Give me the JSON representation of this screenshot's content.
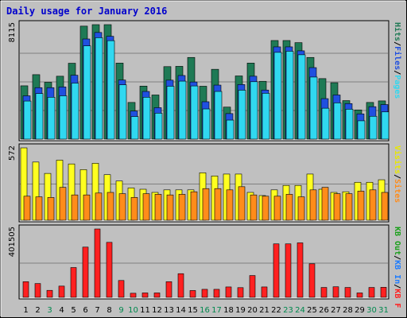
{
  "chart_data": {
    "type": "bar",
    "title": "Daily usage for January 2016",
    "categories": [
      "1",
      "2",
      "3",
      "4",
      "5",
      "6",
      "7",
      "8",
      "9",
      "10",
      "11",
      "12",
      "13",
      "14",
      "15",
      "16",
      "17",
      "18",
      "19",
      "20",
      "21",
      "22",
      "23",
      "24",
      "25",
      "26",
      "27",
      "28",
      "29",
      "30",
      "31"
    ],
    "weekend_days": [
      3,
      9,
      10,
      16,
      17,
      23,
      24,
      30,
      31
    ],
    "colors": {
      "title": "#0000cc",
      "weekday_label": "#000000",
      "weekend_label": "#00884e",
      "hits": "#1f7a55",
      "files": "#2050e0",
      "pages": "#30d8f0",
      "visits": "#ffff20",
      "sites": "#ff8c1a",
      "kbin": "#1a7aff",
      "kbout": "#1a9f1a",
      "kbf": "#ff2020"
    },
    "panels": [
      {
        "name": "hits-files-pages",
        "max_label": "8115",
        "ylim": [
          0,
          8115
        ],
        "series": [
          {
            "name": "Hits",
            "values": [
              3780,
              4570,
              4030,
              4460,
              5380,
              8010,
              8115,
              8115,
              5390,
              2600,
              3760,
              3130,
              5140,
              5160,
              5790,
              3750,
              4950,
              2270,
              4480,
              5390,
              4100,
              6990,
              6990,
              6840,
              5790,
              4290,
              4000,
              2730,
              2070,
              2600,
              2710
            ]
          },
          {
            "name": "Files",
            "values": [
              3070,
              3650,
              3650,
              3700,
              4530,
              7100,
              7560,
              7290,
              4190,
              1990,
              3380,
              2230,
              4180,
              4510,
              4050,
              2650,
              3830,
              1810,
              3870,
              4460,
              3480,
              6540,
              6540,
              6260,
              5070,
              2870,
              3130,
              2520,
              1790,
              2300,
              2450
            ]
          },
          {
            "name": "Pages",
            "values": [
              2700,
              3230,
              2970,
              3070,
              3970,
              6610,
              7190,
              6980,
              3850,
              1600,
              2970,
              1840,
              3750,
              4110,
              3770,
              2140,
              3380,
              1350,
              3470,
              4070,
              3250,
              6150,
              6230,
              5980,
              4400,
              2190,
              2570,
              2120,
              1300,
              1620,
              1930
            ]
          }
        ]
      },
      {
        "name": "visits-sites",
        "max_label": "572",
        "ylim": [
          0,
          572
        ],
        "series": [
          {
            "name": "Visits",
            "values": [
              572,
              460,
              370,
              475,
              445,
              400,
              450,
              360,
              310,
              255,
              245,
              220,
              240,
              240,
              240,
              375,
              350,
              365,
              365,
              220,
              195,
              240,
              275,
              275,
              365,
              245,
              220,
              225,
              300,
              300,
              320
            ]
          },
          {
            "name": "Sites",
            "values": [
              190,
              185,
              180,
              260,
              200,
              200,
              215,
              220,
              210,
              180,
              210,
              205,
              200,
              205,
              225,
              250,
              250,
              240,
              265,
              200,
              190,
              190,
              205,
              185,
              240,
              260,
              210,
              210,
              230,
              240,
              220
            ]
          }
        ]
      },
      {
        "name": "kbytes",
        "max_label": "401505",
        "ylim": [
          0,
          401505
        ],
        "series": [
          {
            "name": "KB F",
            "values": [
              92000,
              81000,
              41000,
              66000,
              175000,
              295000,
              401505,
              323000,
              99000,
              24000,
              26000,
              26000,
              92000,
              139000,
              40000,
              47000,
              47000,
              61000,
              57000,
              128000,
              61000,
              314000,
              314000,
              320000,
              197000,
              58000,
              62000,
              58000,
              26000,
              58000,
              59000
            ]
          }
        ]
      }
    ],
    "legend": {
      "panel1": [
        {
          "text": "Pages",
          "color": "#30d8f0"
        },
        {
          "text": "/",
          "color": "#000000"
        },
        {
          "text": "Files",
          "color": "#2050e0"
        },
        {
          "text": "/",
          "color": "#000000"
        },
        {
          "text": "Hits",
          "color": "#1f7a55"
        }
      ],
      "panel2": [
        {
          "text": "Sites",
          "color": "#ff8c1a"
        },
        {
          "text": "/",
          "color": "#000000"
        },
        {
          "text": "Visits",
          "color": "#e8e800"
        }
      ],
      "panel3": [
        {
          "text": "KB F",
          "color": "#ff2020"
        },
        {
          "text": "/",
          "color": "#000000"
        },
        {
          "text": "KB In",
          "color": "#1a7aff"
        },
        {
          "text": "/",
          "color": "#000000"
        },
        {
          "text": "KB Out",
          "color": "#1a9f1a"
        }
      ]
    }
  }
}
